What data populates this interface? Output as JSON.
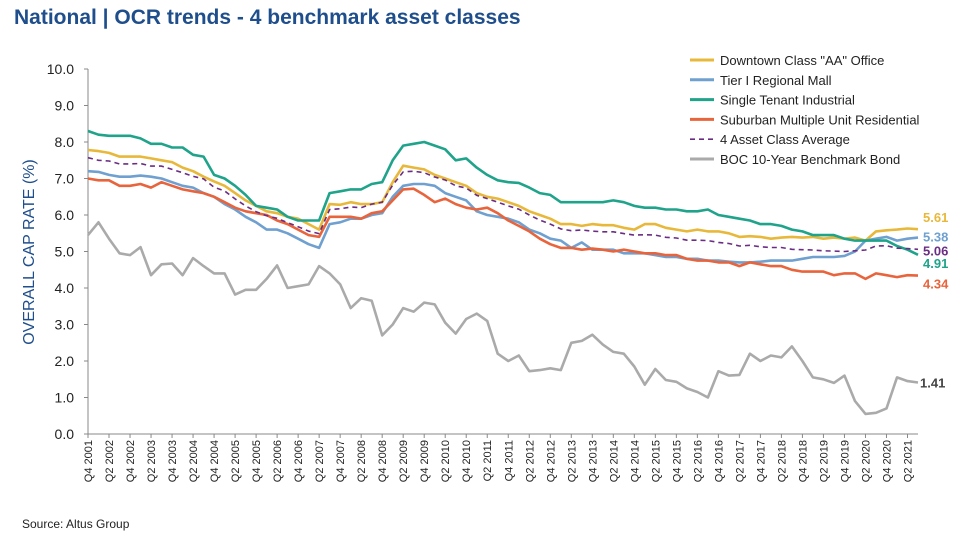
{
  "title": "National | OCR trends - 4 benchmark asset classes",
  "source": "Source:  Altus Group",
  "chart_data": {
    "type": "line",
    "ylabel": "OVERALL CAP RATE (%)",
    "xlabel": "",
    "ylim": [
      0,
      10
    ],
    "yticks": [
      "0.0",
      "1.0",
      "2.0",
      "3.0",
      "4.0",
      "5.0",
      "6.0",
      "7.0",
      "8.0",
      "9.0",
      "10.0"
    ],
    "grid": false,
    "legend_position": "top-right",
    "x_tick_labels": [
      "Q4 2001",
      "Q2 2002",
      "Q4 2002",
      "Q2 2003",
      "Q4 2003",
      "Q2 2004",
      "Q4 2004",
      "Q2 2005",
      "Q4 2005",
      "Q2 2006",
      "Q4 2006",
      "Q2 2007",
      "Q4 2007",
      "Q2 2008",
      "Q4 2008",
      "Q2 2009",
      "Q4 2009",
      "Q2 2010",
      "Q4 2010",
      "Q2 2011",
      "Q4 2011",
      "Q2 2012",
      "Q4 2012",
      "Q2 2013",
      "Q4 2013",
      "Q2 2014",
      "Q4 2014",
      "Q2 2015",
      "Q4 2015",
      "Q2 2016",
      "Q4 2016",
      "Q2 2017",
      "Q4 2017",
      "Q2 2018",
      "Q4 2018",
      "Q2 2019",
      "Q4 2019",
      "Q2 2020",
      "Q4 2020",
      "Q2 2021"
    ],
    "series": [
      {
        "name": "Downtown Class \"AA\" Office",
        "color": "#e8b83a",
        "dash": false,
        "end_label": "5.61",
        "values": [
          7.78,
          7.75,
          7.7,
          7.6,
          7.6,
          7.6,
          7.55,
          7.5,
          7.45,
          7.3,
          7.2,
          7.05,
          6.92,
          6.8,
          6.6,
          6.4,
          6.25,
          6.1,
          6.05,
          5.95,
          5.9,
          5.75,
          5.6,
          6.3,
          6.28,
          6.35,
          6.3,
          6.3,
          6.35,
          6.9,
          7.35,
          7.3,
          7.25,
          7.1,
          7.0,
          6.9,
          6.8,
          6.6,
          6.5,
          6.45,
          6.35,
          6.25,
          6.1,
          6.0,
          5.9,
          5.75,
          5.75,
          5.7,
          5.75,
          5.72,
          5.72,
          5.65,
          5.6,
          5.75,
          5.75,
          5.65,
          5.6,
          5.55,
          5.6,
          5.55,
          5.55,
          5.5,
          5.4,
          5.42,
          5.4,
          5.35,
          5.38,
          5.4,
          5.38,
          5.4,
          5.35,
          5.38,
          5.35,
          5.38,
          5.3,
          5.55,
          5.58,
          5.6,
          5.63,
          5.61
        ]
      },
      {
        "name": "Tier I Regional Mall",
        "color": "#6fa0d0",
        "dash": false,
        "end_label": "5.38",
        "values": [
          7.2,
          7.18,
          7.1,
          7.05,
          7.05,
          7.08,
          7.05,
          7.0,
          6.9,
          6.8,
          6.75,
          6.6,
          6.5,
          6.3,
          6.15,
          5.95,
          5.8,
          5.6,
          5.6,
          5.5,
          5.35,
          5.2,
          5.1,
          5.75,
          5.8,
          5.9,
          5.9,
          6.0,
          6.05,
          6.5,
          6.8,
          6.85,
          6.85,
          6.8,
          6.6,
          6.5,
          6.4,
          6.1,
          6.0,
          5.95,
          5.9,
          5.8,
          5.6,
          5.5,
          5.35,
          5.3,
          5.1,
          5.25,
          5.05,
          5.05,
          5.05,
          4.95,
          4.95,
          4.95,
          4.9,
          4.85,
          4.85,
          4.8,
          4.8,
          4.75,
          4.75,
          4.72,
          4.7,
          4.7,
          4.72,
          4.75,
          4.75,
          4.75,
          4.8,
          4.85,
          4.85,
          4.85,
          4.88,
          5.0,
          5.3,
          5.35,
          5.4,
          5.3,
          5.35,
          5.38
        ]
      },
      {
        "name": "Single Tenant Industrial",
        "color": "#1fa38a",
        "dash": false,
        "end_label": "4.91",
        "values": [
          8.3,
          8.2,
          8.17,
          8.17,
          8.17,
          8.1,
          7.95,
          7.95,
          7.85,
          7.85,
          7.65,
          7.6,
          7.1,
          7.0,
          6.8,
          6.55,
          6.25,
          6.2,
          6.15,
          5.95,
          5.85,
          5.85,
          5.85,
          6.6,
          6.65,
          6.7,
          6.7,
          6.85,
          6.9,
          7.5,
          7.9,
          7.95,
          8.0,
          7.9,
          7.8,
          7.5,
          7.55,
          7.3,
          7.1,
          6.95,
          6.9,
          6.88,
          6.75,
          6.6,
          6.55,
          6.35,
          6.35,
          6.35,
          6.35,
          6.35,
          6.4,
          6.35,
          6.25,
          6.2,
          6.2,
          6.15,
          6.15,
          6.1,
          6.1,
          6.15,
          6.0,
          5.95,
          5.9,
          5.85,
          5.75,
          5.75,
          5.7,
          5.6,
          5.55,
          5.45,
          5.45,
          5.45,
          5.35,
          5.3,
          5.3,
          5.3,
          5.3,
          5.15,
          5.05,
          4.91
        ]
      },
      {
        "name": "Suburban Multiple Unit Residential",
        "color": "#e8643c",
        "dash": false,
        "end_label": "4.34",
        "values": [
          7.0,
          6.95,
          6.95,
          6.8,
          6.8,
          6.85,
          6.75,
          6.9,
          6.8,
          6.7,
          6.65,
          6.6,
          6.5,
          6.35,
          6.2,
          6.1,
          6.05,
          6.0,
          5.85,
          5.75,
          5.6,
          5.45,
          5.4,
          5.95,
          5.95,
          5.95,
          5.9,
          6.05,
          6.1,
          6.4,
          6.7,
          6.72,
          6.55,
          6.35,
          6.45,
          6.3,
          6.2,
          6.15,
          6.2,
          6.05,
          5.85,
          5.7,
          5.55,
          5.35,
          5.2,
          5.1,
          5.1,
          5.05,
          5.08,
          5.05,
          5.0,
          5.05,
          5.0,
          4.95,
          4.95,
          4.9,
          4.9,
          4.8,
          4.75,
          4.75,
          4.7,
          4.7,
          4.6,
          4.7,
          4.65,
          4.6,
          4.6,
          4.5,
          4.45,
          4.45,
          4.45,
          4.35,
          4.4,
          4.4,
          4.25,
          4.4,
          4.35,
          4.3,
          4.35,
          4.34
        ]
      },
      {
        "name": "4 Asset Class Average",
        "color": "#6b2d84",
        "dash": true,
        "end_label": "5.06",
        "values": [
          7.57,
          7.5,
          7.48,
          7.4,
          7.4,
          7.41,
          7.34,
          7.34,
          7.25,
          7.16,
          7.06,
          6.99,
          6.76,
          6.66,
          6.44,
          6.25,
          6.09,
          5.98,
          5.91,
          5.79,
          5.68,
          5.56,
          5.49,
          6.15,
          6.17,
          6.22,
          6.2,
          6.3,
          6.35,
          6.82,
          7.18,
          7.2,
          7.16,
          7.04,
          6.96,
          6.8,
          6.74,
          6.54,
          6.45,
          6.35,
          6.25,
          6.16,
          6.0,
          5.86,
          5.75,
          5.62,
          5.57,
          5.59,
          5.56,
          5.54,
          5.54,
          5.49,
          5.45,
          5.46,
          5.45,
          5.39,
          5.37,
          5.31,
          5.31,
          5.3,
          5.25,
          5.22,
          5.15,
          5.17,
          5.13,
          5.11,
          5.11,
          5.06,
          5.05,
          5.04,
          5.02,
          5.01,
          5.0,
          5.02,
          5.04,
          5.15,
          5.16,
          5.09,
          5.08,
          5.06
        ]
      },
      {
        "name": "BOC 10-Year Benchmark Bond",
        "color": "#aaaaaa",
        "dash": false,
        "end_label": "1.41",
        "values": [
          5.45,
          5.8,
          5.35,
          4.95,
          4.9,
          5.12,
          4.35,
          4.65,
          4.67,
          4.35,
          4.82,
          4.6,
          4.4,
          4.4,
          3.82,
          3.95,
          3.95,
          4.25,
          4.62,
          4.0,
          4.05,
          4.1,
          4.6,
          4.4,
          4.1,
          3.45,
          3.72,
          3.65,
          2.7,
          3.0,
          3.45,
          3.35,
          3.6,
          3.55,
          3.05,
          2.75,
          3.15,
          3.3,
          3.1,
          2.2,
          2.0,
          2.15,
          1.72,
          1.75,
          1.8,
          1.75,
          2.5,
          2.55,
          2.72,
          2.45,
          2.25,
          2.2,
          1.85,
          1.35,
          1.78,
          1.48,
          1.43,
          1.25,
          1.15,
          1.0,
          1.72,
          1.6,
          1.62,
          2.2,
          2.0,
          2.15,
          2.1,
          2.4,
          2.0,
          1.55,
          1.5,
          1.4,
          1.6,
          0.9,
          0.55,
          0.58,
          0.7,
          1.55,
          1.45,
          1.41
        ]
      }
    ]
  }
}
